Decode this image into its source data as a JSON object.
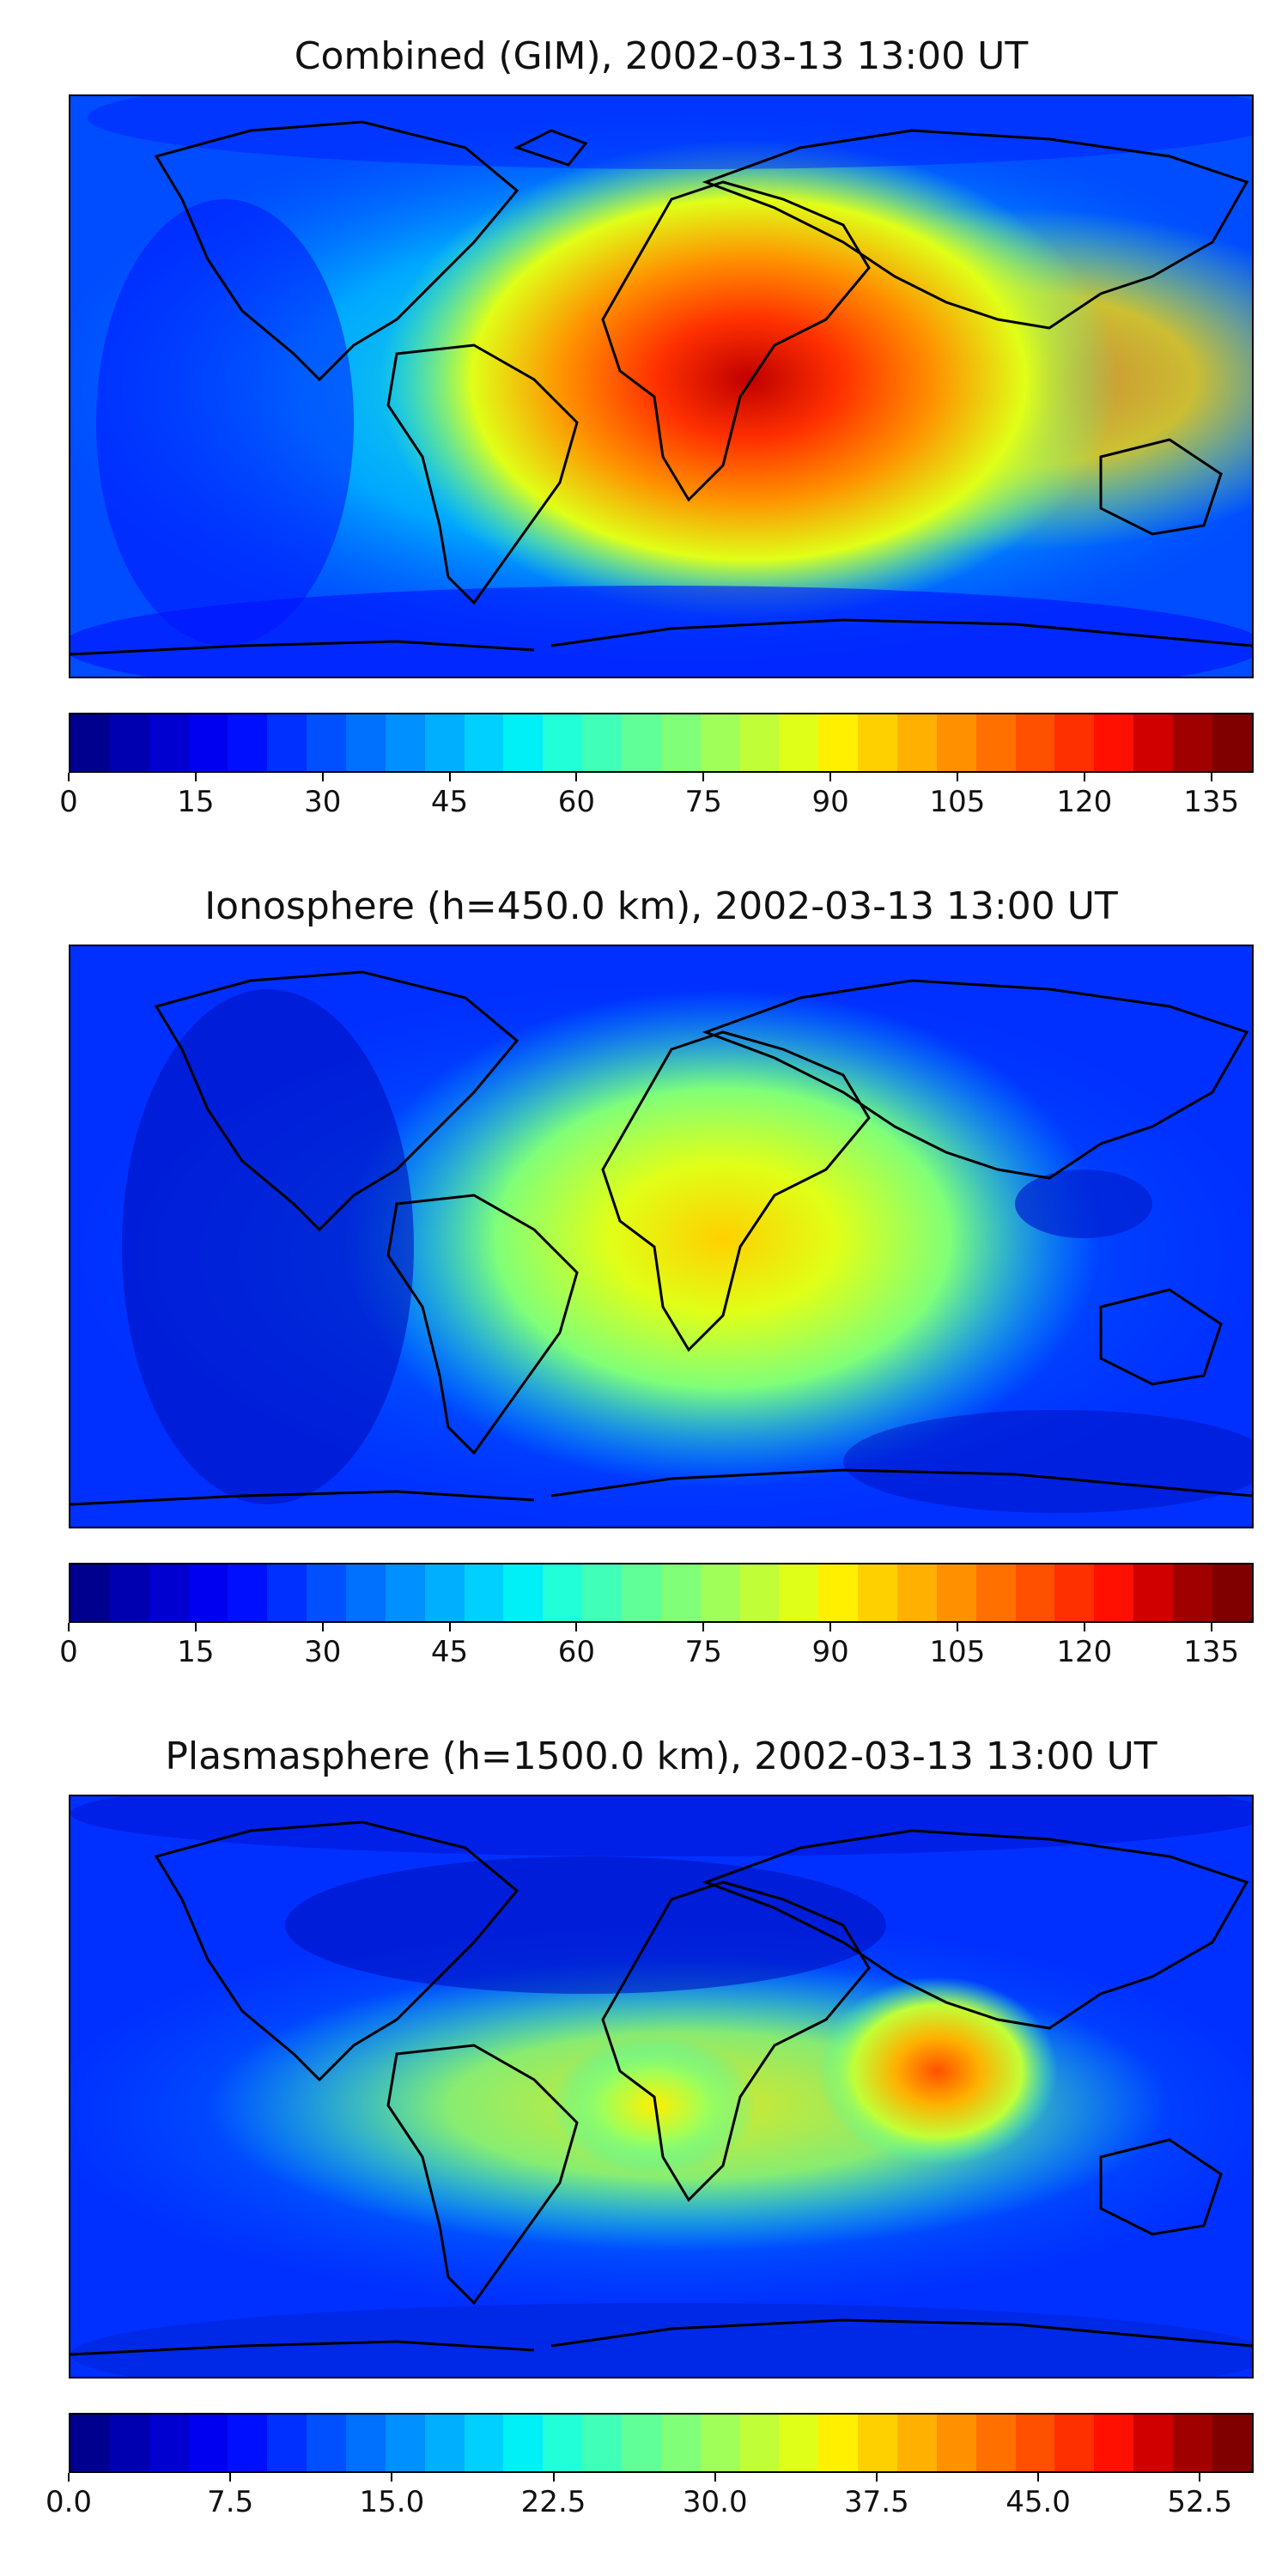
{
  "figure": {
    "panels": [
      {
        "title": "Combined (GIM), 2002-03-13 13:00 UT",
        "tick_labels": [
          "0",
          "15",
          "30",
          "45",
          "60",
          "75",
          "90",
          "105",
          "120",
          "135"
        ],
        "tick_values": [
          0,
          15,
          30,
          45,
          60,
          75,
          90,
          105,
          120,
          135
        ],
        "range": [
          0,
          140
        ]
      },
      {
        "title": "Ionosphere  (h=450.0 km), 2002-03-13 13:00 UT",
        "tick_labels": [
          "0",
          "15",
          "30",
          "45",
          "60",
          "75",
          "90",
          "105",
          "120",
          "135"
        ],
        "tick_values": [
          0,
          15,
          30,
          45,
          60,
          75,
          90,
          105,
          120,
          135
        ],
        "range": [
          0,
          140
        ]
      },
      {
        "title": "Plasmasphere (h=1500.0 km), 2002-03-13 13:00 UT",
        "tick_labels": [
          "0.0",
          "7.5",
          "15.0",
          "22.5",
          "30.0",
          "37.5",
          "45.0",
          "52.5"
        ],
        "tick_values": [
          0,
          7.5,
          15,
          22.5,
          30,
          37.5,
          45,
          52.5
        ],
        "range": [
          0,
          55
        ]
      }
    ]
  },
  "colormap": {
    "name": "jet",
    "levels": 28,
    "colors": [
      "#00008f",
      "#0000b0",
      "#0000d0",
      "#0000f0",
      "#0010ff",
      "#0030ff",
      "#0050ff",
      "#0070ff",
      "#0090ff",
      "#00b0ff",
      "#00d0ff",
      "#00f0f8",
      "#20ffd8",
      "#40ffb8",
      "#60ff98",
      "#80ff78",
      "#a0ff58",
      "#c0ff38",
      "#e0ff18",
      "#fff000",
      "#ffd000",
      "#ffb000",
      "#ff9000",
      "#ff7000",
      "#ff5000",
      "#ff3000",
      "#ff1000",
      "#d00000",
      "#a00000",
      "#800000"
    ]
  }
}
